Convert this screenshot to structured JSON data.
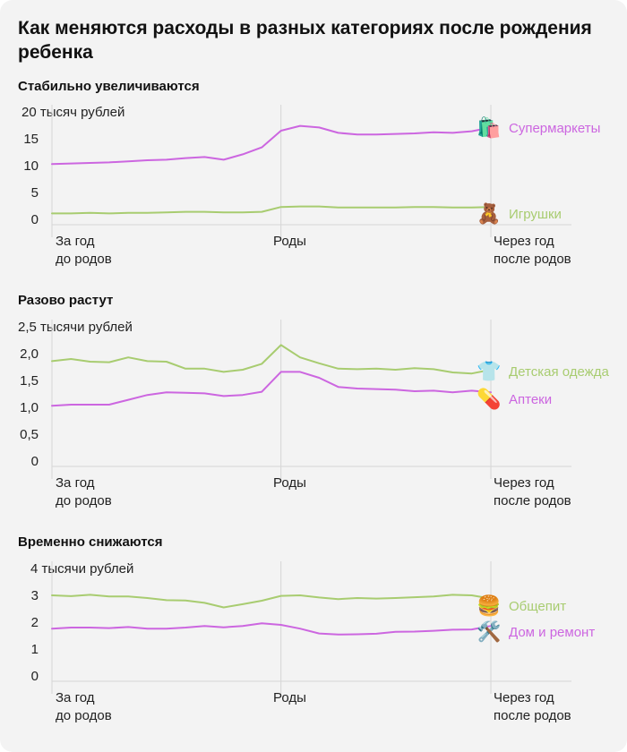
{
  "title": "Как меняются расходы в разных категориях после рождения ребенка",
  "chart_data": [
    {
      "type": "line",
      "subtitle": "Стабильно увеличиваются",
      "unit_label": "20 тысяч рублей",
      "ylim": [
        0,
        20
      ],
      "y_ticks": [
        "15",
        "10",
        "5",
        "0"
      ],
      "x_ticks": [
        [
          "За год",
          "до родов"
        ],
        [
          "Роды"
        ],
        [
          "Через год",
          "после родов"
        ]
      ],
      "series": [
        {
          "name": "Супермаркеты",
          "icon": "🛍️",
          "color": "#cc66e0",
          "values": [
            10.3,
            10.4,
            10.5,
            10.6,
            10.8,
            11.0,
            11.1,
            11.4,
            11.6,
            11.1,
            12.1,
            13.4,
            16.5,
            17.4,
            17.1,
            16.1,
            15.8,
            15.8,
            15.9,
            16.0,
            16.2,
            16.1,
            16.4,
            17.1
          ]
        },
        {
          "name": "Игрушки",
          "icon": "🧸",
          "color": "#a8cc70",
          "values": [
            1.1,
            1.1,
            1.2,
            1.1,
            1.2,
            1.2,
            1.3,
            1.4,
            1.4,
            1.3,
            1.3,
            1.4,
            2.3,
            2.4,
            2.4,
            2.2,
            2.2,
            2.2,
            2.2,
            2.3,
            2.3,
            2.2,
            2.2,
            2.3
          ]
        }
      ]
    },
    {
      "type": "line",
      "subtitle": "Разово растут",
      "unit_label": "2,5 тысячи рублей",
      "ylim": [
        0,
        2.5
      ],
      "y_ticks": [
        "2,0",
        "1,5",
        "1,0",
        "0,5",
        "0"
      ],
      "x_ticks": [
        [
          "За год",
          "до родов"
        ],
        [
          "Роды"
        ],
        [
          "Через год",
          "после родов"
        ]
      ],
      "series": [
        {
          "name": "Детская одежда",
          "icon": "👕",
          "color": "#a8cc70",
          "values": [
            1.86,
            1.9,
            1.85,
            1.84,
            1.93,
            1.86,
            1.85,
            1.72,
            1.72,
            1.66,
            1.7,
            1.81,
            2.16,
            1.93,
            1.82,
            1.72,
            1.71,
            1.72,
            1.7,
            1.73,
            1.71,
            1.65,
            1.63,
            1.7
          ]
        },
        {
          "name": "Аптеки",
          "icon": "💊",
          "color": "#cc66e0",
          "values": [
            1.03,
            1.05,
            1.05,
            1.05,
            1.14,
            1.23,
            1.28,
            1.27,
            1.26,
            1.21,
            1.23,
            1.29,
            1.66,
            1.66,
            1.55,
            1.38,
            1.35,
            1.34,
            1.33,
            1.3,
            1.31,
            1.28,
            1.31,
            1.28
          ]
        }
      ]
    },
    {
      "type": "line",
      "subtitle": "Временно снижаются",
      "unit_label": "4 тысячи рублей",
      "ylim": [
        0,
        4
      ],
      "y_ticks": [
        "3",
        "2",
        "1",
        "0"
      ],
      "x_ticks": [
        [
          "За год",
          "до родов"
        ],
        [
          "Роды"
        ],
        [
          "Через год",
          "после родов"
        ]
      ],
      "series": [
        {
          "name": "Общепит",
          "icon": "🍔",
          "color": "#a8cc70",
          "values": [
            3.0,
            2.97,
            3.02,
            2.96,
            2.96,
            2.9,
            2.82,
            2.81,
            2.72,
            2.55,
            2.67,
            2.8,
            2.98,
            3.0,
            2.92,
            2.86,
            2.9,
            2.88,
            2.9,
            2.93,
            2.96,
            3.02,
            3.0,
            2.88
          ]
        },
        {
          "name": "Дом и ремонт",
          "icon": "🛠️",
          "color": "#cc66e0",
          "values": [
            1.76,
            1.8,
            1.8,
            1.78,
            1.82,
            1.76,
            1.76,
            1.8,
            1.86,
            1.81,
            1.86,
            1.96,
            1.9,
            1.76,
            1.58,
            1.54,
            1.55,
            1.57,
            1.64,
            1.65,
            1.68,
            1.72,
            1.73,
            1.86
          ]
        }
      ]
    }
  ]
}
